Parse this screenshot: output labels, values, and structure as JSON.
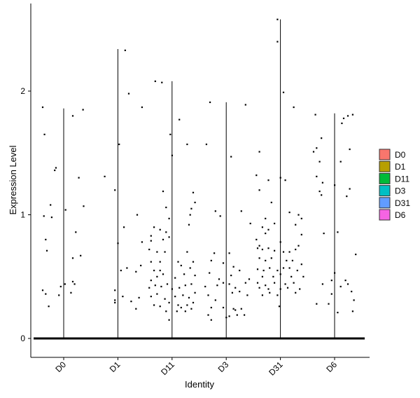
{
  "chart_data": {
    "type": "violin",
    "xlabel": "Identity",
    "ylabel": "Expression Level",
    "ylim": [
      -0.15,
      2.65
    ],
    "yticks": [
      0,
      1,
      2
    ],
    "categories": [
      "D0",
      "D1",
      "D11",
      "D3",
      "D31",
      "D6"
    ],
    "legend": {
      "position": "right",
      "items": [
        {
          "label": "D0",
          "color": "#F8766D"
        },
        {
          "label": "D1",
          "color": "#B79F00"
        },
        {
          "label": "D11",
          "color": "#00BA38"
        },
        {
          "label": "D3",
          "color": "#00BFC4"
        },
        {
          "label": "D31",
          "color": "#619CFF"
        },
        {
          "label": "D6",
          "color": "#F564E3"
        }
      ]
    },
    "series": [
      {
        "category": "D0",
        "max": 1.86,
        "points": [
          [
            -0.35,
            1.87
          ],
          [
            -0.32,
            1.65
          ],
          [
            0.15,
            1.8
          ],
          [
            0.32,
            1.85
          ],
          [
            -0.22,
            1.08
          ],
          [
            -0.15,
            1.36
          ],
          [
            -0.13,
            1.38
          ],
          [
            0.25,
            1.3
          ],
          [
            0.33,
            1.07
          ],
          [
            0.03,
            1.04
          ],
          [
            -0.33,
            0.99
          ],
          [
            -0.2,
            0.98
          ],
          [
            -0.3,
            0.8
          ],
          [
            -0.28,
            0.71
          ],
          [
            0.2,
            0.86
          ],
          [
            0.28,
            0.67
          ],
          [
            0.15,
            0.65
          ],
          [
            -0.35,
            0.39
          ],
          [
            -0.3,
            0.36
          ],
          [
            -0.25,
            0.26
          ],
          [
            -0.05,
            0.42
          ],
          [
            -0.08,
            0.35
          ],
          [
            0.02,
            0.44
          ],
          [
            0.15,
            0.46
          ],
          [
            0.18,
            0.44
          ],
          [
            0.12,
            0.37
          ]
        ]
      },
      {
        "category": "D1",
        "max": 2.34,
        "points": [
          [
            0.12,
            2.33
          ],
          [
            0.18,
            1.98
          ],
          [
            0.4,
            1.87
          ],
          [
            0.02,
            1.57
          ],
          [
            -0.22,
            1.31
          ],
          [
            -0.05,
            1.2
          ],
          [
            0.32,
            1.0
          ],
          [
            0.1,
            0.9
          ],
          [
            0.4,
            0.78
          ],
          [
            0.0,
            0.77
          ],
          [
            0.05,
            0.55
          ],
          [
            0.15,
            0.57
          ],
          [
            0.3,
            0.54
          ],
          [
            0.38,
            0.59
          ],
          [
            -0.05,
            0.39
          ],
          [
            0.08,
            0.34
          ],
          [
            -0.05,
            0.31
          ],
          [
            -0.05,
            0.29
          ],
          [
            0.22,
            0.3
          ],
          [
            0.3,
            0.24
          ],
          [
            0.35,
            0.33
          ]
        ]
      },
      {
        "category": "D11",
        "max": 2.08,
        "points": [
          [
            -0.28,
            2.08
          ],
          [
            -0.17,
            2.07
          ],
          [
            0.12,
            1.77
          ],
          [
            -0.03,
            1.65
          ],
          [
            0.25,
            1.57
          ],
          [
            0.0,
            1.48
          ],
          [
            0.35,
            1.18
          ],
          [
            -0.15,
            1.19
          ],
          [
            0.38,
            1.1
          ],
          [
            -0.1,
            1.06
          ],
          [
            0.3,
            1.0
          ],
          [
            0.32,
            1.05
          ],
          [
            -0.05,
            0.97
          ],
          [
            0.28,
            0.92
          ],
          [
            -0.35,
            0.83
          ],
          [
            -0.3,
            0.9
          ],
          [
            -0.2,
            0.88
          ],
          [
            -0.1,
            0.86
          ],
          [
            -0.35,
            0.79
          ],
          [
            -0.15,
            0.8
          ],
          [
            -0.05,
            0.82
          ],
          [
            -0.38,
            0.72
          ],
          [
            -0.25,
            0.7
          ],
          [
            -0.12,
            0.7
          ],
          [
            0.25,
            0.7
          ],
          [
            -0.35,
            0.62
          ],
          [
            -0.2,
            0.62
          ],
          [
            0.1,
            0.62
          ],
          [
            0.35,
            0.62
          ],
          [
            -0.3,
            0.55
          ],
          [
            -0.2,
            0.55
          ],
          [
            0.15,
            0.59
          ],
          [
            0.3,
            0.57
          ],
          [
            -0.35,
            0.47
          ],
          [
            -0.25,
            0.5
          ],
          [
            -0.15,
            0.52
          ],
          [
            0.05,
            0.49
          ],
          [
            0.2,
            0.52
          ],
          [
            0.38,
            0.51
          ],
          [
            -0.38,
            0.41
          ],
          [
            -0.28,
            0.43
          ],
          [
            -0.18,
            0.42
          ],
          [
            -0.08,
            0.44
          ],
          [
            0.0,
            0.4
          ],
          [
            0.12,
            0.41
          ],
          [
            0.22,
            0.43
          ],
          [
            0.32,
            0.44
          ],
          [
            -0.35,
            0.34
          ],
          [
            -0.25,
            0.36
          ],
          [
            -0.12,
            0.32
          ],
          [
            0.05,
            0.34
          ],
          [
            0.18,
            0.35
          ],
          [
            0.28,
            0.33
          ],
          [
            0.38,
            0.37
          ],
          [
            -0.3,
            0.27
          ],
          [
            -0.2,
            0.26
          ],
          [
            -0.05,
            0.29
          ],
          [
            0.1,
            0.27
          ],
          [
            0.25,
            0.27
          ],
          [
            0.35,
            0.29
          ],
          [
            -0.1,
            0.22
          ],
          [
            0.08,
            0.22
          ],
          [
            0.22,
            0.22
          ],
          [
            -0.05,
            0.15
          ],
          [
            0.15,
            0.25
          ],
          [
            0.32,
            0.24
          ]
        ]
      },
      {
        "category": "D3",
        "max": 1.91,
        "points": [
          [
            -0.27,
            1.91
          ],
          [
            0.32,
            1.89
          ],
          [
            -0.33,
            1.57
          ],
          [
            0.08,
            1.47
          ],
          [
            -0.18,
            1.03
          ],
          [
            0.25,
            1.03
          ],
          [
            -0.1,
            0.99
          ],
          [
            0.4,
            0.93
          ],
          [
            -0.25,
            0.63
          ],
          [
            0.05,
            0.69
          ],
          [
            -0.2,
            0.69
          ],
          [
            0.12,
            0.58
          ],
          [
            -0.05,
            0.61
          ],
          [
            0.22,
            0.55
          ],
          [
            -0.28,
            0.53
          ],
          [
            0.08,
            0.51
          ],
          [
            -0.12,
            0.48
          ],
          [
            -0.35,
            0.42
          ],
          [
            -0.15,
            0.43
          ],
          [
            0.05,
            0.44
          ],
          [
            0.15,
            0.41
          ],
          [
            0.32,
            0.45
          ],
          [
            0.38,
            0.48
          ],
          [
            -0.05,
            0.45
          ],
          [
            -0.3,
            0.35
          ],
          [
            -0.18,
            0.31
          ],
          [
            0.1,
            0.37
          ],
          [
            0.22,
            0.38
          ],
          [
            0.35,
            0.35
          ],
          [
            -0.25,
            0.25
          ],
          [
            -0.05,
            0.25
          ],
          [
            0.15,
            0.23
          ],
          [
            -0.3,
            0.19
          ],
          [
            0.05,
            0.18
          ],
          [
            0.12,
            0.24
          ],
          [
            0.25,
            0.24
          ],
          [
            -0.25,
            0.15
          ],
          [
            0.0,
            0.17
          ],
          [
            0.18,
            0.19
          ],
          [
            0.3,
            0.19
          ]
        ]
      },
      {
        "category": "D31",
        "max": 2.58,
        "points": [
          [
            -0.05,
            2.58
          ],
          [
            -0.05,
            2.4
          ],
          [
            0.05,
            1.99
          ],
          [
            0.22,
            1.87
          ],
          [
            -0.35,
            1.51
          ],
          [
            -0.4,
            1.32
          ],
          [
            -0.2,
            1.28
          ],
          [
            0.0,
            1.3
          ],
          [
            0.08,
            1.28
          ],
          [
            -0.35,
            1.2
          ],
          [
            -0.15,
            1.1
          ],
          [
            0.3,
            1.0
          ],
          [
            0.15,
            1.02
          ],
          [
            0.35,
            0.97
          ],
          [
            -0.25,
            0.97
          ],
          [
            0.25,
            0.92
          ],
          [
            -0.1,
            0.93
          ],
          [
            -0.3,
            0.9
          ],
          [
            -0.2,
            0.88
          ],
          [
            -0.25,
            0.85
          ],
          [
            0.35,
            0.84
          ],
          [
            -0.4,
            0.8
          ],
          [
            -0.35,
            0.75
          ],
          [
            0.0,
            0.78
          ],
          [
            0.3,
            0.75
          ],
          [
            -0.38,
            0.73
          ],
          [
            -0.3,
            0.72
          ],
          [
            -0.2,
            0.73
          ],
          [
            -0.1,
            0.71
          ],
          [
            0.05,
            0.7
          ],
          [
            0.15,
            0.7
          ],
          [
            0.25,
            0.72
          ],
          [
            -0.35,
            0.65
          ],
          [
            -0.25,
            0.63
          ],
          [
            -0.15,
            0.65
          ],
          [
            0.1,
            0.63
          ],
          [
            0.2,
            0.63
          ],
          [
            0.35,
            0.6
          ],
          [
            -0.38,
            0.56
          ],
          [
            -0.28,
            0.55
          ],
          [
            -0.18,
            0.57
          ],
          [
            -0.05,
            0.55
          ],
          [
            0.05,
            0.57
          ],
          [
            0.15,
            0.57
          ],
          [
            0.28,
            0.55
          ],
          [
            -0.3,
            0.5
          ],
          [
            -0.12,
            0.5
          ],
          [
            0.0,
            0.52
          ],
          [
            0.18,
            0.5
          ],
          [
            0.38,
            0.5
          ],
          [
            -0.38,
            0.45
          ],
          [
            -0.25,
            0.43
          ],
          [
            -0.1,
            0.45
          ],
          [
            0.08,
            0.44
          ],
          [
            0.22,
            0.45
          ],
          [
            -0.35,
            0.41
          ],
          [
            -0.2,
            0.4
          ],
          [
            0.0,
            0.4
          ],
          [
            0.12,
            0.41
          ],
          [
            0.32,
            0.4
          ],
          [
            -0.3,
            0.35
          ],
          [
            -0.18,
            0.37
          ],
          [
            -0.05,
            0.35
          ],
          [
            0.25,
            0.37
          ],
          [
            -0.02,
            0.26
          ]
        ]
      },
      {
        "category": "D6",
        "max": 1.82,
        "points": [
          [
            -0.32,
            1.81
          ],
          [
            0.15,
            1.78
          ],
          [
            0.3,
            1.81
          ],
          [
            0.22,
            1.8
          ],
          [
            0.12,
            1.74
          ],
          [
            -0.22,
            1.62
          ],
          [
            -0.35,
            1.51
          ],
          [
            -0.3,
            1.54
          ],
          [
            -0.25,
            1.43
          ],
          [
            0.1,
            1.43
          ],
          [
            0.25,
            1.53
          ],
          [
            -0.3,
            1.31
          ],
          [
            -0.2,
            1.26
          ],
          [
            0.0,
            1.24
          ],
          [
            -0.25,
            1.19
          ],
          [
            0.25,
            1.21
          ],
          [
            -0.22,
            1.16
          ],
          [
            0.2,
            1.15
          ],
          [
            -0.18,
            0.85
          ],
          [
            0.05,
            0.86
          ],
          [
            0.35,
            0.68
          ],
          [
            -0.05,
            0.47
          ],
          [
            0.0,
            0.53
          ],
          [
            0.18,
            0.47
          ],
          [
            0.22,
            0.44
          ],
          [
            0.28,
            0.38
          ],
          [
            -0.2,
            0.44
          ],
          [
            0.1,
            0.42
          ],
          [
            -0.3,
            0.28
          ],
          [
            -0.1,
            0.28
          ],
          [
            0.32,
            0.31
          ],
          [
            -0.05,
            0.36
          ],
          [
            0.05,
            0.21
          ],
          [
            0.3,
            0.22
          ]
        ]
      }
    ]
  }
}
